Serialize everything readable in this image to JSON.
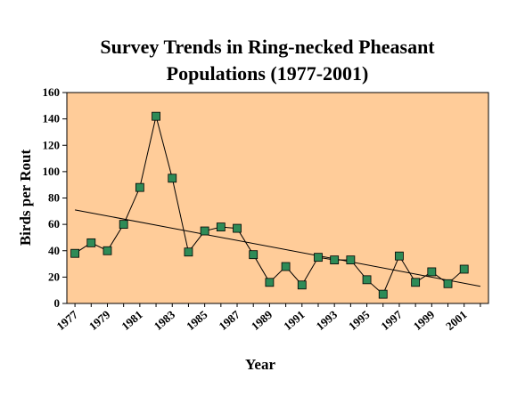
{
  "chart_data": {
    "type": "line",
    "title_lines": [
      "Survey Trends in Ring-necked Pheasant",
      "Populations (1977-2001)"
    ],
    "xlabel": "Year",
    "ylabel": "Birds per Rout",
    "x": [
      1977,
      1978,
      1979,
      1980,
      1981,
      1982,
      1983,
      1984,
      1985,
      1986,
      1987,
      1988,
      1989,
      1990,
      1991,
      1992,
      1993,
      1994,
      1995,
      1996,
      1997,
      1998,
      1999,
      2000,
      2001,
      2002
    ],
    "series": [
      {
        "values": [
          38,
          46,
          40,
          60,
          88,
          142,
          95,
          39,
          55,
          58,
          57,
          37,
          16,
          28,
          14,
          35,
          33,
          33,
          18,
          7,
          36,
          16,
          24,
          15,
          26,
          null
        ],
        "color": "#2e8b57",
        "marker": "square"
      }
    ],
    "trendline": {
      "start": [
        1977,
        71
      ],
      "end": [
        2002,
        13
      ],
      "color": "#000000"
    },
    "x_tick_labels": [
      "1977",
      "1979",
      "1981",
      "1983",
      "1985",
      "1987",
      "1989",
      "1991",
      "1993",
      "1995",
      "1997",
      "1999",
      "2001"
    ],
    "x_tick_values": [
      1977,
      1979,
      1981,
      1983,
      1985,
      1987,
      1989,
      1991,
      1993,
      1995,
      1997,
      1999,
      2001
    ],
    "y_ticks": [
      0,
      20,
      40,
      60,
      80,
      100,
      120,
      140,
      160
    ],
    "ylim": [
      0,
      160
    ],
    "xlim": [
      1976.5,
      2002.5
    ],
    "plot_background": "#ffcc99",
    "legend": "none",
    "grid": false
  }
}
